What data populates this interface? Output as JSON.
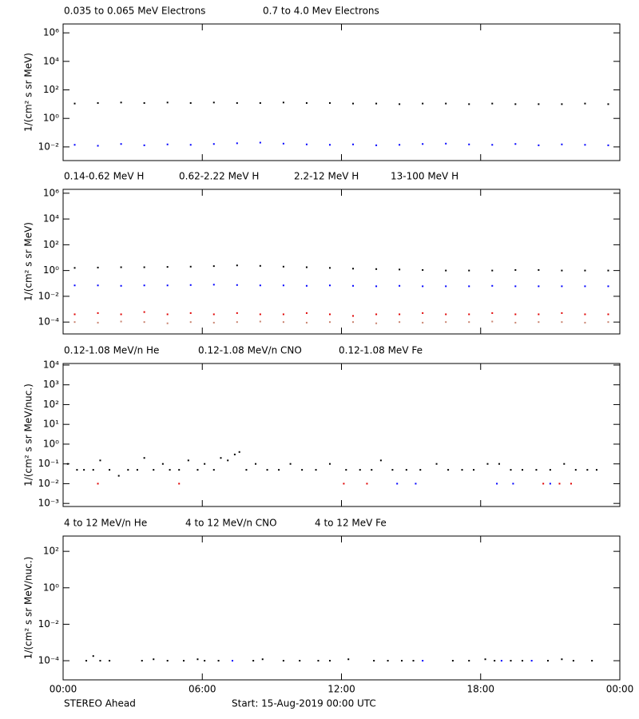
{
  "chart_data": [
    {
      "type": "scatter",
      "yscale": "log",
      "ylabel": "1/(cm² s sr MeV)",
      "xlim": [
        0,
        24
      ],
      "ylim": [
        0.0011,
        4200000
      ],
      "yticks": [
        {
          "value": 0.01,
          "label": "10⁻²"
        },
        {
          "value": 1,
          "label": "10⁰"
        },
        {
          "value": 100,
          "label": "10²"
        },
        {
          "value": 10000,
          "label": "10⁴"
        },
        {
          "value": 1000000,
          "label": "10⁶"
        }
      ],
      "series": [
        {
          "name": "0.035 to 0.065 MeV Electrons",
          "color": "#000000",
          "x": [
            0.5,
            1.5,
            2.5,
            3.5,
            4.5,
            5.5,
            6.5,
            7.5,
            8.5,
            9.5,
            10.5,
            11.5,
            12.5,
            13.5,
            14.5,
            15.5,
            16.5,
            17.5,
            18.5,
            19.5,
            20.5,
            21.5,
            22.5,
            23.5
          ],
          "values": [
            11,
            12,
            13,
            12,
            13,
            12,
            13,
            12,
            12,
            13,
            12,
            12,
            11,
            11,
            10,
            11,
            11,
            10,
            11,
            10,
            10,
            10,
            11,
            10
          ]
        },
        {
          "name": "0.7 to 4.0 Mev Electrons",
          "color": "#0000ff",
          "x": [
            0.5,
            1.5,
            2.5,
            3.5,
            4.5,
            5.5,
            6.5,
            7.5,
            8.5,
            9.5,
            10.5,
            11.5,
            12.5,
            13.5,
            14.5,
            15.5,
            16.5,
            17.5,
            18.5,
            19.5,
            20.5,
            21.5,
            22.5,
            23.5
          ],
          "values": [
            0.014,
            0.012,
            0.016,
            0.013,
            0.015,
            0.014,
            0.016,
            0.018,
            0.02,
            0.017,
            0.015,
            0.014,
            0.015,
            0.013,
            0.014,
            0.016,
            0.017,
            0.015,
            0.014,
            0.016,
            0.013,
            0.015,
            0.014,
            0.013
          ]
        }
      ]
    },
    {
      "type": "scatter",
      "yscale": "log",
      "ylabel": "1/(cm² s sr MeV)",
      "xlim": [
        0,
        24
      ],
      "ylim": [
        1.2e-05,
        2000000
      ],
      "yticks": [
        {
          "value": 0.0001,
          "label": "10⁻⁴"
        },
        {
          "value": 0.01,
          "label": "10⁻²"
        },
        {
          "value": 1,
          "label": "10⁰"
        },
        {
          "value": 100,
          "label": "10²"
        },
        {
          "value": 10000,
          "label": "10⁴"
        },
        {
          "value": 1000000,
          "label": "10⁶"
        }
      ],
      "series": [
        {
          "name": "0.14-0.62 MeV H",
          "color": "#000000",
          "x": [
            0.5,
            1.5,
            2.5,
            3.5,
            4.5,
            5.5,
            6.5,
            7.5,
            8.5,
            9.5,
            10.5,
            11.5,
            12.5,
            13.5,
            14.5,
            15.5,
            16.5,
            17.5,
            18.5,
            19.5,
            20.5,
            21.5,
            22.5,
            23.5
          ],
          "values": [
            1.6,
            1.7,
            1.8,
            1.8,
            1.9,
            2.0,
            2.2,
            2.5,
            2.3,
            2.0,
            1.8,
            1.6,
            1.4,
            1.3,
            1.2,
            1.1,
            1.0,
            1.0,
            1.0,
            1.1,
            1.1,
            1.0,
            1.0,
            1.0
          ]
        },
        {
          "name": "0.62-2.22 MeV H",
          "color": "#0000ff",
          "x": [
            0.5,
            1.5,
            2.5,
            3.5,
            4.5,
            5.5,
            6.5,
            7.5,
            8.5,
            9.5,
            10.5,
            11.5,
            12.5,
            13.5,
            14.5,
            15.5,
            16.5,
            17.5,
            18.5,
            19.5,
            20.5,
            21.5,
            22.5,
            23.5
          ],
          "values": [
            0.07,
            0.07,
            0.065,
            0.07,
            0.07,
            0.075,
            0.08,
            0.075,
            0.07,
            0.07,
            0.065,
            0.07,
            0.065,
            0.06,
            0.065,
            0.06,
            0.06,
            0.06,
            0.065,
            0.06,
            0.06,
            0.06,
            0.06,
            0.06
          ]
        },
        {
          "name": "2.2-12 MeV H",
          "color": "#c8826e",
          "x": [
            0.5,
            1.5,
            2.5,
            3.5,
            4.5,
            5.5,
            6.5,
            7.5,
            8.5,
            9.5,
            10.5,
            11.5,
            12.5,
            13.5,
            14.5,
            15.5,
            16.5,
            17.5,
            18.5,
            19.5,
            20.5,
            21.5,
            22.5,
            23.5
          ],
          "values": [
            0.0001,
            9e-05,
            0.00011,
            0.0001,
            8e-05,
            0.0001,
            9e-05,
            0.0001,
            0.00011,
            0.0001,
            9e-05,
            0.0001,
            0.0001,
            8e-05,
            0.0001,
            9e-05,
            0.0001,
            0.0001,
            0.00011,
            9e-05,
            0.0001,
            0.0001,
            9e-05,
            0.0001
          ]
        },
        {
          "name": "13-100 MeV H",
          "color": "#e00000",
          "x": [
            0.5,
            1.5,
            2.5,
            3.5,
            4.5,
            5.5,
            6.5,
            7.5,
            8.5,
            9.5,
            10.5,
            11.5,
            12.5,
            13.5,
            14.5,
            15.5,
            16.5,
            17.5,
            18.5,
            19.5,
            20.5,
            21.5,
            22.5,
            23.5
          ],
          "values": [
            0.0004,
            0.0005,
            0.0004,
            0.0006,
            0.0004,
            0.0005,
            0.0004,
            0.0005,
            0.0004,
            0.0004,
            0.0005,
            0.0004,
            0.0003,
            0.0004,
            0.0004,
            0.0005,
            0.0004,
            0.0004,
            0.0005,
            0.0004,
            0.0004,
            0.0005,
            0.0004,
            0.0004
          ]
        }
      ]
    },
    {
      "type": "scatter",
      "yscale": "log",
      "ylabel": "1/(cm² s sr MeV/nuc.)",
      "xlim": [
        0,
        24
      ],
      "ylim": [
        0.0007,
        12000
      ],
      "yticks": [
        {
          "value": 0.001,
          "label": "10⁻³"
        },
        {
          "value": 0.01,
          "label": "10⁻²"
        },
        {
          "value": 0.1,
          "label": "10⁻¹"
        },
        {
          "value": 1,
          "label": "10⁰"
        },
        {
          "value": 10,
          "label": "10¹"
        },
        {
          "value": 100,
          "label": "10²"
        },
        {
          "value": 1000,
          "label": "10³"
        },
        {
          "value": 10000,
          "label": "10⁴"
        }
      ],
      "series": [
        {
          "name": "0.12-1.08 MeV/n He",
          "color": "#000000",
          "x": [
            0.2,
            0.6,
            0.9,
            1.3,
            1.6,
            2.0,
            2.4,
            2.8,
            3.2,
            3.5,
            3.9,
            4.3,
            4.6,
            5.0,
            5.4,
            5.8,
            6.1,
            6.5,
            6.8,
            7.1,
            7.4,
            7.6,
            7.9,
            8.3,
            8.8,
            9.3,
            9.8,
            10.3,
            10.9,
            11.5,
            12.2,
            12.8,
            13.3,
            13.7,
            14.2,
            14.8,
            15.4,
            16.1,
            16.6,
            17.2,
            17.7,
            18.3,
            18.8,
            19.3,
            19.8,
            20.4,
            21.0,
            21.6,
            22.1,
            22.6,
            23.0
          ],
          "values": [
            0.1,
            0.05,
            0.05,
            0.05,
            0.15,
            0.05,
            0.025,
            0.05,
            0.05,
            0.2,
            0.05,
            0.1,
            0.05,
            0.05,
            0.15,
            0.05,
            0.1,
            0.05,
            0.2,
            0.15,
            0.3,
            0.4,
            0.05,
            0.1,
            0.05,
            0.05,
            0.1,
            0.05,
            0.05,
            0.1,
            0.05,
            0.05,
            0.05,
            0.15,
            0.05,
            0.05,
            0.05,
            0.1,
            0.05,
            0.05,
            0.05,
            0.1,
            0.1,
            0.05,
            0.05,
            0.05,
            0.05,
            0.1,
            0.05,
            0.05,
            0.05
          ]
        },
        {
          "name": "0.12-1.08 MeV/n CNO",
          "color": "#0000ff",
          "x": [
            14.4,
            15.2,
            18.7,
            19.4,
            21.0
          ],
          "values": [
            0.01,
            0.01,
            0.01,
            0.01,
            0.01
          ]
        },
        {
          "name": "0.12-1.08 MeV Fe",
          "color": "#e00000",
          "x": [
            1.5,
            5.0,
            12.1,
            13.1,
            20.7,
            21.4,
            21.9
          ],
          "values": [
            0.01,
            0.01,
            0.01,
            0.01,
            0.01,
            0.01,
            0.01
          ]
        }
      ]
    },
    {
      "type": "scatter",
      "yscale": "log",
      "ylabel": "1/(cm² s sr MeV/nuc.)",
      "xlim": [
        0,
        24
      ],
      "ylim": [
        8.9e-06,
        690
      ],
      "yticks": [
        {
          "value": 0.0001,
          "label": "10⁻⁴"
        },
        {
          "value": 0.01,
          "label": "10⁻²"
        },
        {
          "value": 1,
          "label": "10⁰"
        },
        {
          "value": 100,
          "label": "10²"
        }
      ],
      "xticks": [
        {
          "value": 0,
          "label": "00:00"
        },
        {
          "value": 6,
          "label": "06:00"
        },
        {
          "value": 12,
          "label": "12:00"
        },
        {
          "value": 18,
          "label": "18:00"
        },
        {
          "value": 24,
          "label": "00:00"
        }
      ],
      "series": [
        {
          "name": "4 to 12 MeV/n He",
          "color": "#000000",
          "x": [
            1.0,
            1.3,
            1.6,
            2.0,
            3.4,
            3.9,
            4.5,
            5.2,
            5.8,
            6.1,
            6.7,
            8.2,
            8.6,
            9.5,
            10.2,
            11.0,
            11.5,
            12.3,
            13.4,
            14.0,
            14.6,
            15.1,
            16.8,
            17.5,
            18.2,
            18.6,
            19.3,
            19.8,
            20.9,
            21.5,
            22.0,
            22.8
          ],
          "values": [
            0.0001,
            0.00018,
            0.0001,
            0.0001,
            0.0001,
            0.00012,
            0.0001,
            0.0001,
            0.00012,
            0.0001,
            0.0001,
            0.0001,
            0.00012,
            0.0001,
            0.0001,
            0.0001,
            0.0001,
            0.00012,
            0.0001,
            0.0001,
            0.0001,
            0.0001,
            0.0001,
            0.0001,
            0.00012,
            0.0001,
            0.0001,
            0.0001,
            0.0001,
            0.00012,
            0.0001,
            0.0001
          ]
        },
        {
          "name": "4 to 12 MeV/n CNO",
          "color": "#0000ff",
          "x": [
            7.3,
            15.5,
            18.9,
            20.2
          ],
          "values": [
            0.0001,
            0.0001,
            0.0001,
            0.0001
          ]
        },
        {
          "name": "4 to 12 MeV Fe",
          "color": "#e00000",
          "x": [],
          "values": []
        }
      ]
    }
  ],
  "footer": {
    "left": "STEREO Ahead",
    "center": "Start: 15-Aug-2019 00:00 UTC"
  }
}
